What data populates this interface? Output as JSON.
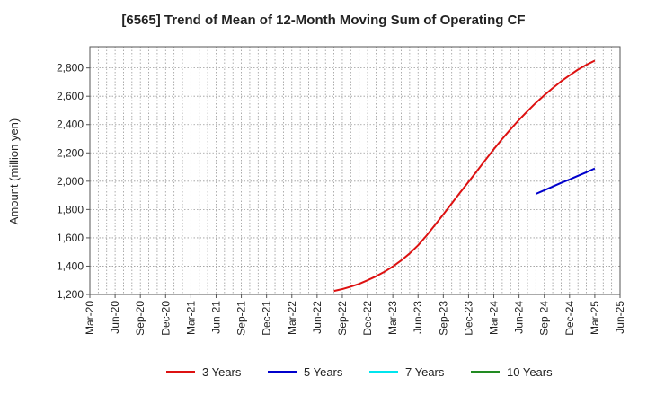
{
  "chart_data": {
    "type": "line",
    "title": "[6565]  Trend of Mean of 12-Month Moving Sum of Operating CF",
    "ylabel": "Amount (million yen)",
    "xlabel": "",
    "ylim": [
      1200,
      2950
    ],
    "yticks": [
      1200,
      1400,
      1600,
      1800,
      2000,
      2200,
      2400,
      2600,
      2800
    ],
    "ytick_labels": [
      "1,200",
      "1,400",
      "1,600",
      "1,800",
      "2,000",
      "2,200",
      "2,400",
      "2,600",
      "2,800"
    ],
    "xlim": [
      "2020-03",
      "2025-06"
    ],
    "xtick_labels": [
      "Mar-20",
      "Jun-20",
      "Sep-20",
      "Dec-20",
      "Mar-21",
      "Jun-21",
      "Sep-21",
      "Dec-21",
      "Mar-22",
      "Jun-22",
      "Sep-22",
      "Dec-22",
      "Mar-23",
      "Jun-23",
      "Sep-23",
      "Dec-23",
      "Mar-24",
      "Jun-24",
      "Sep-24",
      "Dec-24",
      "Mar-25",
      "Jun-25"
    ],
    "grid": true,
    "legend_position": "bottom",
    "series": [
      {
        "name": "3 Years",
        "color": "#dd1111",
        "x": [
          "2022-08",
          "2022-09",
          "2022-10",
          "2022-11",
          "2022-12",
          "2023-01",
          "2023-02",
          "2023-03",
          "2023-04",
          "2023-05",
          "2023-06",
          "2023-07",
          "2023-08",
          "2023-09",
          "2023-10",
          "2023-11",
          "2023-12",
          "2024-01",
          "2024-02",
          "2024-03",
          "2024-04",
          "2024-05",
          "2024-06",
          "2024-07",
          "2024-08",
          "2024-09",
          "2024-10",
          "2024-11",
          "2024-12",
          "2025-01",
          "2025-02",
          "2025-03"
        ],
        "y": [
          1225,
          1238,
          1255,
          1275,
          1300,
          1328,
          1360,
          1397,
          1440,
          1490,
          1547,
          1615,
          1690,
          1765,
          1843,
          1920,
          1995,
          2072,
          2150,
          2225,
          2298,
          2368,
          2433,
          2495,
          2553,
          2607,
          2658,
          2705,
          2748,
          2788,
          2822,
          2852
        ]
      },
      {
        "name": "5 Years",
        "color": "#0000cc",
        "x": [
          "2024-08",
          "2024-09",
          "2024-10",
          "2024-11",
          "2024-12",
          "2025-01",
          "2025-02",
          "2025-03"
        ],
        "y": [
          1910,
          1936,
          1962,
          1988,
          2012,
          2038,
          2063,
          2090
        ]
      },
      {
        "name": "7 Years",
        "color": "#00e5ee",
        "x": [],
        "y": []
      },
      {
        "name": "10 Years",
        "color": "#228b22",
        "x": [],
        "y": []
      }
    ]
  }
}
